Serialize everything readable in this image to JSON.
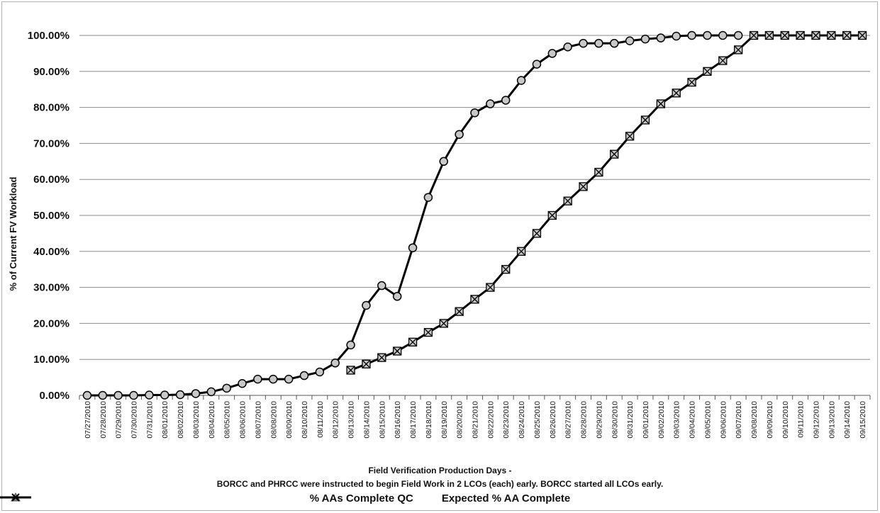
{
  "chart_data": {
    "type": "line",
    "ylabel": "% of Current  FV Workload",
    "xlabel_lines": [
      "Field Verification Production Days -",
      "BORCC and PHRCC were instructed to begin Field Work in 2 LCOs (each) early.  BORCC started all LCOs early."
    ],
    "ylim": [
      0,
      100
    ],
    "yticks": [
      "0.00%",
      "10.00%",
      "20.00%",
      "30.00%",
      "40.00%",
      "50.00%",
      "60.00%",
      "70.00%",
      "80.00%",
      "90.00%",
      "100.00%"
    ],
    "grid": true,
    "legend_position": "bottom",
    "categories": [
      "07/27/2010",
      "07/28/2010",
      "07/29/2010",
      "07/30/2010",
      "07/31/2010",
      "08/01/2010",
      "08/02/2010",
      "08/03/2010",
      "08/04/2010",
      "08/05/2010",
      "08/06/2010",
      "08/07/2010",
      "08/08/2010",
      "08/09/2010",
      "08/10/2010",
      "08/11/2010",
      "08/12/2010",
      "08/13/2010",
      "08/14/2010",
      "08/15/2010",
      "08/16/2010",
      "08/17/2010",
      "08/18/2010",
      "08/19/2010",
      "08/20/2010",
      "08/21/2010",
      "08/22/2010",
      "08/23/2010",
      "08/24/2010",
      "08/25/2010",
      "08/26/2010",
      "08/27/2010",
      "08/28/2010",
      "08/29/2010",
      "08/30/2010",
      "08/31/2010",
      "09/01/2010",
      "09/02/2010",
      "09/03/2010",
      "09/04/2010",
      "09/05/2010",
      "09/06/2010",
      "09/07/2010",
      "09/08/2010",
      "09/09/2010",
      "09/10/2010",
      "09/11/2010",
      "09/12/2010",
      "09/13/2010",
      "09/14/2010",
      "09/15/2010"
    ],
    "series": [
      {
        "name": "% AAs Complete QC",
        "color": "#000000",
        "marker": "circle",
        "values": [
          0,
          0,
          0,
          0,
          0.1,
          0.1,
          0.2,
          0.5,
          1.0,
          2.0,
          3.3,
          4.5,
          4.5,
          4.5,
          5.5,
          6.5,
          9.0,
          14.0,
          25.0,
          30.5,
          27.5,
          41.0,
          55.0,
          65.0,
          72.5,
          78.5,
          81.0,
          82.0,
          87.5,
          92.0,
          95.0,
          96.8,
          97.8,
          97.8,
          97.8,
          98.5,
          99.0,
          99.3,
          99.8,
          100,
          100,
          100,
          100,
          null,
          null,
          null,
          null,
          null,
          null,
          null,
          null
        ]
      },
      {
        "name": "Expected % AA Complete",
        "color": "#000000",
        "marker": "x-square",
        "values": [
          null,
          null,
          null,
          null,
          null,
          null,
          null,
          null,
          null,
          null,
          null,
          null,
          null,
          null,
          null,
          null,
          null,
          7.0,
          8.7,
          10.5,
          12.3,
          14.8,
          17.5,
          20.0,
          23.3,
          26.7,
          30.0,
          35.0,
          40.0,
          45.0,
          50.0,
          54.0,
          58.0,
          62.0,
          67.0,
          72.0,
          76.5,
          81.0,
          84.0,
          87.0,
          90.0,
          93.0,
          96.0,
          100,
          100,
          100,
          100,
          100,
          100,
          100,
          100
        ]
      }
    ]
  }
}
